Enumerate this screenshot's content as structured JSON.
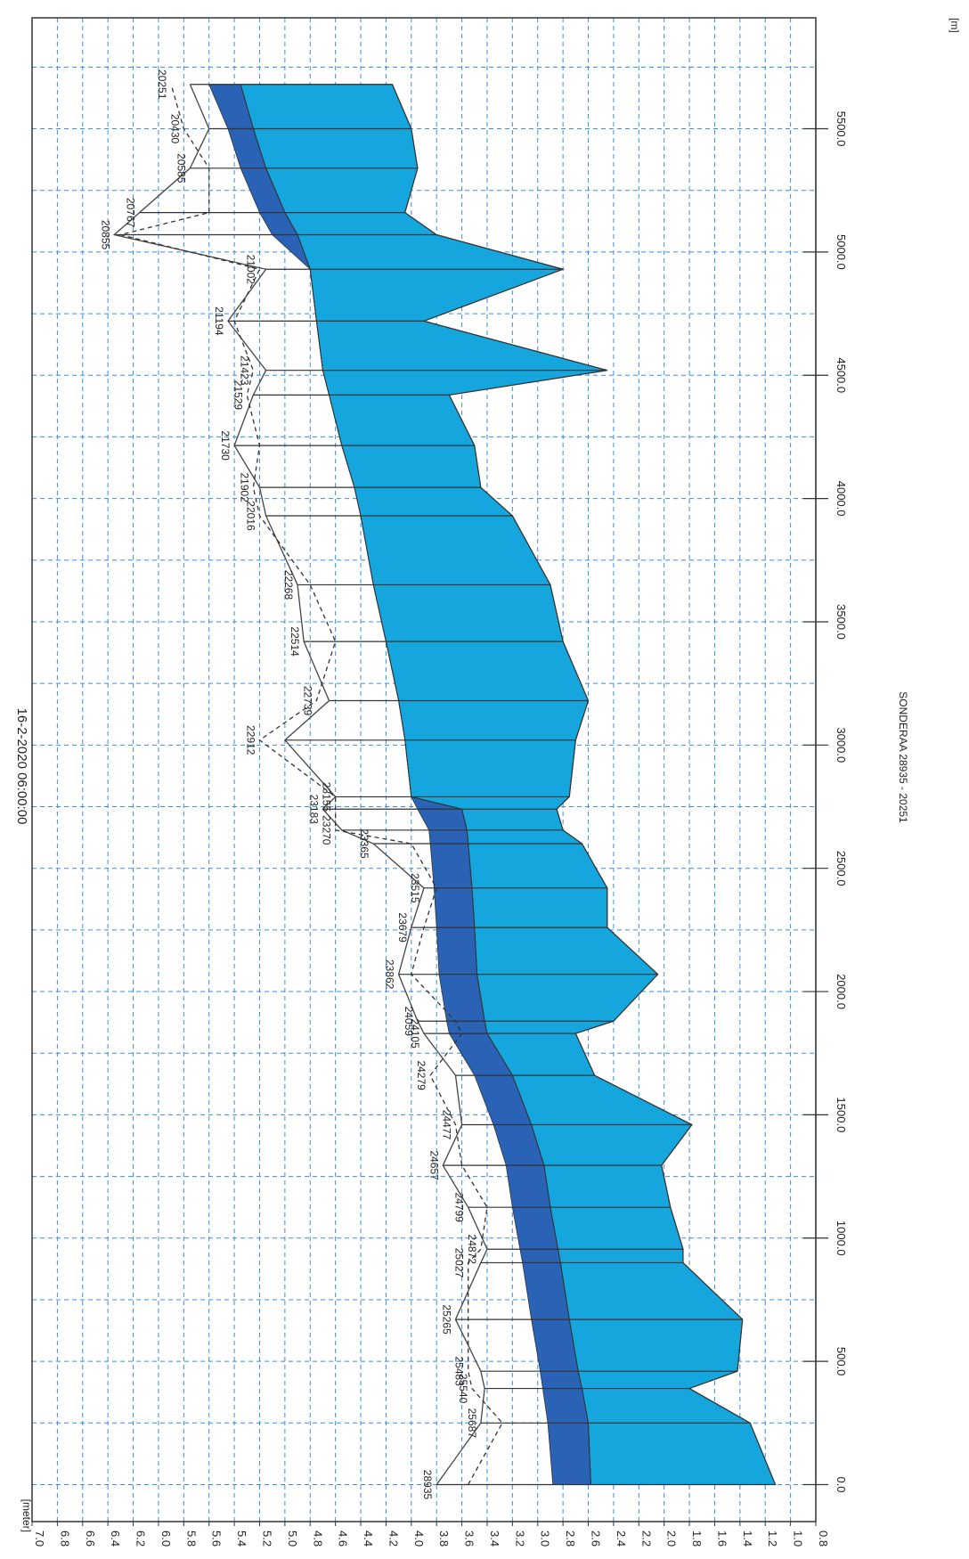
{
  "chart_data": {
    "type": "area",
    "title": "16-2-2020 06:00:00",
    "xlabel": "[meter]",
    "x2label": "[m]",
    "caption": "SONDERAA 28935 - 20251",
    "xlim": [
      0.8,
      7.0
    ],
    "ylim": [
      -150,
      5950
    ],
    "x_ticks": [
      "7.0",
      "6.8",
      "6.6",
      "6.4",
      "6.2",
      "6.0",
      "5.8",
      "5.6",
      "5.4",
      "5.2",
      "5.0",
      "4.8",
      "4.6",
      "4.4",
      "4.2",
      "4.0",
      "3.8",
      "3.6",
      "3.4",
      "3.2",
      "3.0",
      "2.8",
      "2.6",
      "2.4",
      "2.2",
      "2.0",
      "1.8",
      "1.6",
      "1.4",
      "1.2",
      "1.0",
      "0.8"
    ],
    "y_ticks": [
      "0.0",
      "500.0",
      "1000.0",
      "1500.0",
      "2000.0",
      "2500.0",
      "3000.0",
      "3500.0",
      "4000.0",
      "4500.0",
      "5000.0",
      "5500.0"
    ],
    "grid": true,
    "colors": {
      "bed": "#16a6de",
      "water": "#2a62b5",
      "grid": "#3a8de0",
      "line": "#333333"
    },
    "cross_sections": [
      {
        "label": "28935",
        "chainage": 0,
        "bed": 1.12,
        "water_low": 2.58,
        "water_high": 2.88,
        "bank_solid": 3.8,
        "bank_dashed": 3.55
      },
      {
        "label": "25687",
        "chainage": 250,
        "bed": 1.32,
        "water_low": 2.6,
        "water_high": 2.92,
        "bank_solid": 3.45,
        "bank_dashed": 3.28
      },
      {
        "label": "25540",
        "chainage": 390,
        "bed": 1.8,
        "water_low": 2.65,
        "water_high": 2.96,
        "bank_solid": 3.42,
        "bank_dashed": 3.52
      },
      {
        "label": "25483",
        "chainage": 460,
        "bed": 1.42,
        "water_low": 2.68,
        "water_high": 2.98,
        "bank_solid": 3.45,
        "bank_dashed": 3.55
      },
      {
        "label": "25265",
        "chainage": 670,
        "bed": 1.38,
        "water_low": 2.75,
        "water_high": 3.05,
        "bank_solid": 3.65,
        "bank_dashed": 3.55
      },
      {
        "label": "25027",
        "chainage": 900,
        "bed": 1.85,
        "water_low": 2.82,
        "water_high": 3.12,
        "bank_solid": 3.45,
        "bank_dashed": 3.55
      },
      {
        "label": "24872",
        "chainage": 955,
        "bed": 1.85,
        "water_low": 2.84,
        "water_high": 3.14,
        "bank_solid": 3.4,
        "bank_dashed": 3.45
      },
      {
        "label": "24799",
        "chainage": 1125,
        "bed": 1.95,
        "water_low": 2.9,
        "water_high": 3.2,
        "bank_solid": 3.55,
        "bank_dashed": 3.4
      },
      {
        "label": "24657",
        "chainage": 1295,
        "bed": 2.02,
        "water_low": 2.95,
        "water_high": 3.25,
        "bank_solid": 3.75,
        "bank_dashed": 3.6
      },
      {
        "label": "24477",
        "chainage": 1460,
        "bed": 1.78,
        "water_low": 3.05,
        "water_high": 3.35,
        "bank_solid": 3.6,
        "bank_dashed": 3.65
      },
      {
        "label": "24279",
        "chainage": 1660,
        "bed": 2.55,
        "water_low": 3.2,
        "water_high": 3.5,
        "bank_solid": 3.65,
        "bank_dashed": 3.85
      },
      {
        "label": "24105",
        "chainage": 1830,
        "bed": 2.7,
        "water_low": 3.4,
        "water_high": 3.7,
        "bank_solid": 3.9,
        "bank_dashed": 3.6
      },
      {
        "label": "24059",
        "chainage": 1880,
        "bed": 2.4,
        "water_low": 3.42,
        "water_high": 3.72,
        "bank_solid": 3.95,
        "bank_dashed": 3.65
      },
      {
        "label": "23862",
        "chainage": 2070,
        "bed": 2.05,
        "water_low": 3.48,
        "water_high": 3.78,
        "bank_solid": 4.1,
        "bank_dashed": 4.0
      },
      {
        "label": "23679",
        "chainage": 2260,
        "bed": 2.45,
        "water_low": 3.5,
        "water_high": 3.8,
        "bank_solid": 4.0,
        "bank_dashed": 3.9
      },
      {
        "label": "23515",
        "chainage": 2420,
        "bed": 2.45,
        "water_low": 3.52,
        "water_high": 3.82,
        "bank_solid": 3.9,
        "bank_dashed": 3.8
      },
      {
        "label": "23365",
        "chainage": 2600,
        "bed": 2.65,
        "water_low": 3.55,
        "water_high": 3.85,
        "bank_solid": 4.3,
        "bank_dashed": 4.0
      },
      {
        "label": "23270",
        "chainage": 2655,
        "bed": 2.8,
        "water_low": 3.56,
        "water_high": 3.86,
        "bank_solid": 4.55,
        "bank_dashed": 4.6
      },
      {
        "label": "23183",
        "chainage": 2740,
        "bed": 2.85,
        "water_low": 3.6,
        "water_high": 3.95,
        "bank_solid": 4.7,
        "bank_dashed": 4.6
      },
      {
        "label": "23155",
        "chainage": 2790,
        "bed": 2.75,
        "water_low": 4.0,
        "water_high": 4.0,
        "bank_solid": 4.6,
        "bank_dashed": 4.6
      },
      {
        "label": "22912",
        "chainage": 3020,
        "bed": 2.7,
        "water_low": 4.05,
        "water_high": 4.05,
        "bank_solid": 5.0,
        "bank_dashed": 5.2
      },
      {
        "label": "22739",
        "chainage": 3180,
        "bed": 2.6,
        "water_low": 4.1,
        "water_high": 4.1,
        "bank_solid": 4.65,
        "bank_dashed": 4.75
      },
      {
        "label": "22514",
        "chainage": 3420,
        "bed": 2.8,
        "water_low": 4.2,
        "water_high": 4.2,
        "bank_solid": 4.85,
        "bank_dashed": 4.6
      },
      {
        "label": "22268",
        "chainage": 3650,
        "bed": 2.9,
        "water_low": 4.3,
        "water_high": 4.3,
        "bank_solid": 4.9,
        "bank_dashed": 4.8
      },
      {
        "label": "22016",
        "chainage": 3930,
        "bed": 3.2,
        "water_low": 4.4,
        "water_high": 4.4,
        "bank_solid": 5.15,
        "bank_dashed": 5.2
      },
      {
        "label": "21902",
        "chainage": 4045,
        "bed": 3.45,
        "water_low": 4.45,
        "water_high": 4.45,
        "bank_solid": 5.2,
        "bank_dashed": 5.25
      },
      {
        "label": "21730",
        "chainage": 4215,
        "bed": 3.5,
        "water_low": 4.55,
        "water_high": 4.55,
        "bank_solid": 5.4,
        "bank_dashed": 5.2
      },
      {
        "label": "21529",
        "chainage": 4420,
        "bed": 3.7,
        "water_low": 4.65,
        "water_high": 4.65,
        "bank_solid": 5.25,
        "bank_dashed": 5.3
      },
      {
        "label": "21423",
        "chainage": 4520,
        "bed": 2.45,
        "water_low": 4.7,
        "water_high": 4.7,
        "bank_solid": 5.15,
        "bank_dashed": 5.25
      },
      {
        "label": "21194",
        "chainage": 4720,
        "bed": 3.9,
        "water_low": 4.75,
        "water_high": 4.75,
        "bank_solid": 5.45,
        "bank_dashed": 5.4
      },
      {
        "label": "21002",
        "chainage": 4930,
        "bed": 2.8,
        "water_low": 4.8,
        "water_high": 4.8,
        "bank_solid": 5.15,
        "bank_dashed": 5.2
      },
      {
        "label": "20855",
        "chainage": 5070,
        "bed": 3.8,
        "water_low": 4.9,
        "water_high": 5.1,
        "bank_solid": 6.35,
        "bank_dashed": 6.3
      },
      {
        "label": "20767",
        "chainage": 5160,
        "bed": 4.05,
        "water_low": 5.0,
        "water_high": 5.2,
        "bank_solid": 6.15,
        "bank_dashed": 5.6
      },
      {
        "label": "20585",
        "chainage": 5340,
        "bed": 3.95,
        "water_low": 5.15,
        "water_high": 5.35,
        "bank_solid": 5.75,
        "bank_dashed": 5.6
      },
      {
        "label": "20430",
        "chainage": 5500,
        "bed": 4.0,
        "water_low": 5.25,
        "water_high": 5.45,
        "bank_solid": 5.6,
        "bank_dashed": 5.8
      },
      {
        "label": "20251",
        "chainage": 5680,
        "bed": 4.15,
        "water_low": 5.35,
        "water_high": 5.6,
        "bank_solid": 5.75,
        "bank_dashed": 5.9
      }
    ]
  }
}
